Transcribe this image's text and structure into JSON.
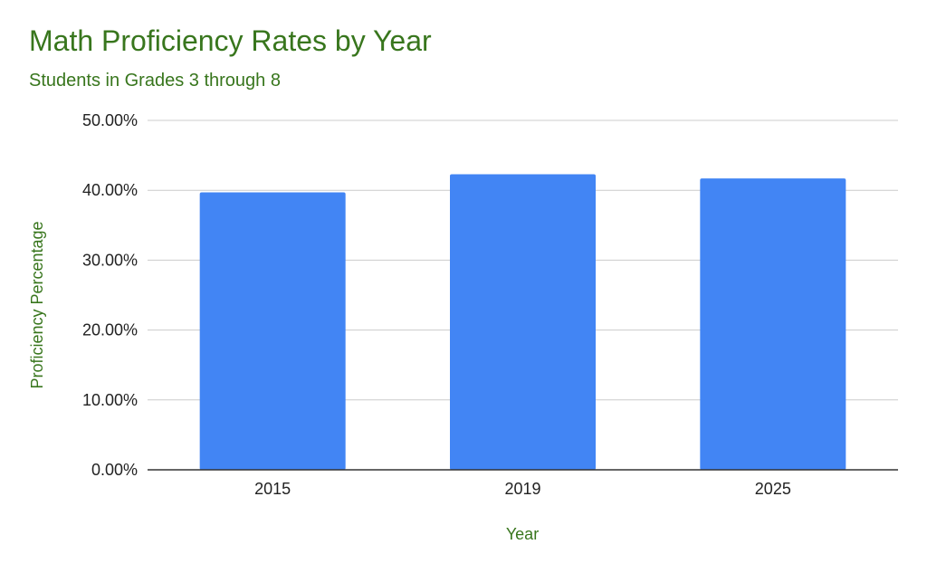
{
  "chart_data": {
    "type": "bar",
    "title": "Math Proficiency Rates by Year",
    "subtitle": "Students in Grades 3 through 8",
    "xlabel": "Year",
    "ylabel": "Proficiency Percentage",
    "categories": [
      "2015",
      "2019",
      "2025"
    ],
    "values": [
      39.7,
      42.3,
      41.7
    ],
    "ylim": [
      0,
      50
    ],
    "yticks": [
      0,
      10,
      20,
      30,
      40,
      50
    ],
    "ytick_labels": [
      "0.00%",
      "10.00%",
      "20.00%",
      "30.00%",
      "40.00%",
      "50.00%"
    ],
    "grid": true,
    "legend": "none",
    "colors": {
      "bar": "#4285f4",
      "title": "#38761d",
      "gridline": "#cccccc",
      "axis": "#333333",
      "tick_text": "#222222"
    }
  }
}
